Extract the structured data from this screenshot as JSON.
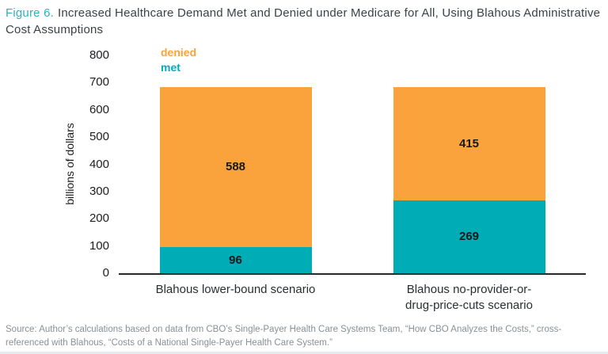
{
  "title": {
    "prefix": "Figure 6.",
    "text": "Increased Healthcare Demand Met and Denied under Medicare for All, Using Blahous Administrative Cost Assumptions"
  },
  "source": "Source: Author’s calculations based on data from CBO’s Single-Payer Health Care Systems Team, “How CBO Analyzes the Costs,” cross-referenced with Blahous, “Costs of a National Single-Payer Health Care System.”",
  "colors": {
    "accent_teal": "#33AFBE",
    "bar_met": "#00ACB5",
    "bar_denied": "#FAA23B",
    "title_text": "#3B4247",
    "axis_line": "#26282B",
    "source_text": "#8A9095"
  },
  "chart_data": {
    "type": "bar",
    "stacked": true,
    "title": "Increased Healthcare Demand Met and Denied under Medicare for All, Using Blahous Administrative Cost Assumptions",
    "categories": [
      "Blahous lower-bound scenario",
      "Blahous no-provider-or-\ndrug-price-cuts scenario"
    ],
    "series": [
      {
        "name": "met",
        "color": "#00ACB5",
        "values": [
          96,
          269
        ]
      },
      {
        "name": "denied",
        "color": "#FAA23B",
        "values": [
          588,
          415
        ]
      }
    ],
    "totals": [
      684,
      684
    ],
    "ylabel": "billions of dollars",
    "xlabel": "",
    "ylim": [
      0,
      800
    ],
    "ytick_step": 100,
    "grid": false,
    "value_labels": true,
    "legend": {
      "position": "top-left",
      "entries": [
        "denied",
        "met"
      ]
    }
  }
}
